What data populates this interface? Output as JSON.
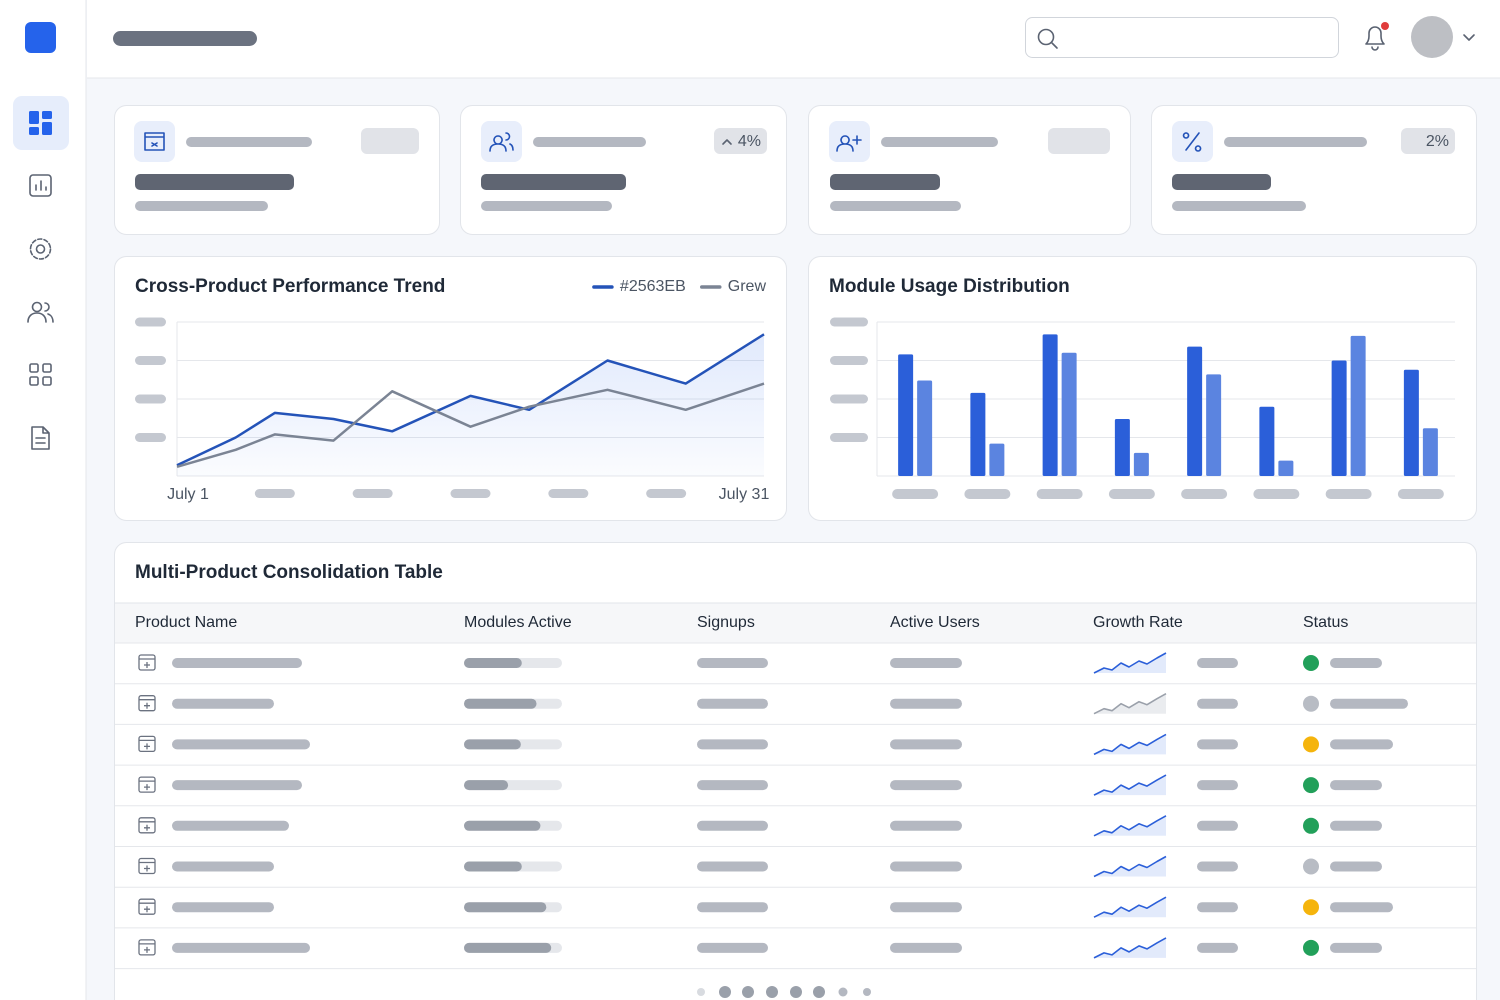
{
  "kpis": [
    {
      "badge": "4%"
    },
    {
      "badge": "2%"
    }
  ],
  "chart_data": [
    {
      "type": "line",
      "title": "Cross-Product Performance Trend",
      "x": [
        1,
        4,
        6,
        9,
        12,
        16,
        19,
        23,
        27,
        31
      ],
      "xlim": [
        1,
        31
      ],
      "xticks": [
        {
          "value": 1,
          "label": "July 1"
        },
        {
          "value": 31,
          "label": "July 31"
        }
      ],
      "ylim": [
        0,
        100
      ],
      "yticks": [
        0,
        25,
        50,
        75,
        100
      ],
      "grid": true,
      "series": [
        {
          "name": "#2563EB",
          "color": "#2453b8",
          "values": [
            7,
            25,
            41,
            37,
            29,
            52,
            43,
            75,
            60,
            92
          ]
        },
        {
          "name": "Grew",
          "color": "#7b8494",
          "values": [
            6,
            17,
            27,
            23,
            55,
            32,
            45,
            56,
            43,
            60
          ]
        }
      ]
    },
    {
      "type": "bar",
      "title": "Module Usage Distribution",
      "categories": [
        null,
        null,
        null,
        null,
        null,
        null,
        null,
        null
      ],
      "ylim": [
        0,
        100
      ],
      "yticks": [
        0,
        25,
        50,
        75,
        100
      ],
      "grid": true,
      "series": [
        {
          "color": "#2b5fd9",
          "values": [
            79,
            54,
            92,
            37,
            84,
            45,
            75,
            69
          ]
        },
        {
          "color": "#5b84e0",
          "values": [
            62,
            21,
            80,
            15,
            66,
            10,
            91,
            31
          ]
        }
      ]
    }
  ],
  "table": {
    "title": "Multi-Product Consolidation Table",
    "columns": [
      "Product Name",
      "Modules Active",
      "Signups",
      "Active Users",
      "Growth Rate",
      "Status"
    ],
    "rows": [
      {
        "progress": 59,
        "status_color": "#22a05a"
      },
      {
        "progress": 74,
        "status_color": "#b8bcc4"
      },
      {
        "progress": 58,
        "status_color": "#f5b40c"
      },
      {
        "progress": 45,
        "status_color": "#22a05a"
      },
      {
        "progress": 78,
        "status_color": "#22a05a"
      },
      {
        "progress": 59,
        "status_color": "#b8bcc4"
      },
      {
        "progress": 84,
        "status_color": "#f5b40c"
      },
      {
        "progress": 89,
        "status_color": "#22a05a"
      }
    ]
  }
}
